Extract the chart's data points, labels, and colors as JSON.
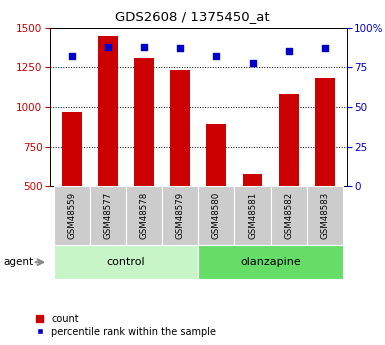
{
  "title": "GDS2608 / 1375450_at",
  "samples": [
    "GSM48559",
    "GSM48577",
    "GSM48578",
    "GSM48579",
    "GSM48580",
    "GSM48581",
    "GSM48582",
    "GSM48583"
  ],
  "counts": [
    970,
    1450,
    1310,
    1230,
    890,
    580,
    1080,
    1185
  ],
  "percentiles": [
    82,
    88,
    88,
    87,
    82,
    78,
    85,
    87
  ],
  "groups": [
    {
      "label": "control",
      "start": 0,
      "end": 4,
      "color": "#c8f5c8"
    },
    {
      "label": "olanzapine",
      "start": 4,
      "end": 8,
      "color": "#66dd66"
    }
  ],
  "ylim_left": [
    500,
    1500
  ],
  "ylim_right": [
    0,
    100
  ],
  "yticks_left": [
    500,
    750,
    1000,
    1250,
    1500
  ],
  "yticks_right": [
    0,
    25,
    50,
    75,
    100
  ],
  "ytick_labels_right": [
    "0",
    "25",
    "50",
    "75",
    "100%"
  ],
  "bar_color": "#cc0000",
  "scatter_color": "#0000cc",
  "bar_width": 0.55,
  "bg_color": "#ffffff",
  "tick_bg_color": "#cccccc",
  "agent_label": "agent",
  "legend_count": "count",
  "legend_percentile": "percentile rank within the sample"
}
